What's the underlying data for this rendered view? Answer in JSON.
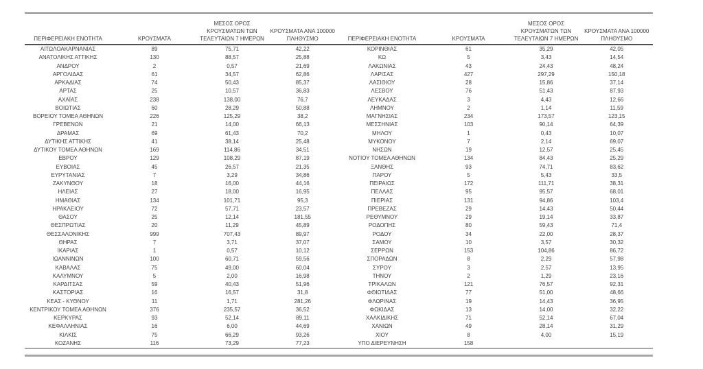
{
  "table": {
    "columns": {
      "region": "ΠΕΡΙΦΕΡΕΙΑΚΗ ΕΝΟΤΗΤΑ",
      "cases": "ΚΡΟΥΣΜΑΤΑ",
      "avg7": "ΜΕΣΟΣ ΟΡΟΣ\nΚΡΟΥΣΜΑΤΩΝ ΤΩΝ\nΤΕΛΕΥΤΑΙΩΝ 7 ΗΜΕΡΩΝ",
      "per100k": "ΚΡΟΥΣΜΑΤΑ ΑΝΑ 100000\nΠΛΗΘΥΣΜΟ"
    },
    "left_rows": [
      [
        "ΑΙΤΩΛΟΑΚΑΡΝΑΝΙΑΣ",
        "89",
        "75,71",
        "42,22"
      ],
      [
        "ΑΝΑΤΟΛΙΚΗΣ ΑΤΤΙΚΗΣ",
        "130",
        "88,57",
        "25,88"
      ],
      [
        "ΑΝΔΡΟΥ",
        "2",
        "0,57",
        "21,69"
      ],
      [
        "ΑΡΓΟΛΙΔΑΣ",
        "61",
        "34,57",
        "62,86"
      ],
      [
        "ΑΡΚΑΔΙΑΣ",
        "74",
        "50,43",
        "85,37"
      ],
      [
        "ΑΡΤΑΣ",
        "25",
        "10,57",
        "36,83"
      ],
      [
        "ΑΧΑΪΑΣ",
        "238",
        "138,00",
        "76,7"
      ],
      [
        "ΒΟΙΩΤΙΑΣ",
        "60",
        "28,29",
        "50,88"
      ],
      [
        "ΒΟΡΕΙΟΥ ΤΟΜΕΑ ΑΘΗΝΩΝ",
        "226",
        "125,29",
        "38,2"
      ],
      [
        "ΓΡΕΒΕΝΩΝ",
        "21",
        "14,00",
        "66,13"
      ],
      [
        "ΔΡΑΜΑΣ",
        "69",
        "61,43",
        "70,2"
      ],
      [
        "ΔΥΤΙΚΗΣ ΑΤΤΙΚΗΣ",
        "41",
        "38,14",
        "25,48"
      ],
      [
        "ΔΥΤΙΚΟΥ ΤΟΜΕΑ ΑΘΗΝΩΝ",
        "169",
        "114,86",
        "34,51"
      ],
      [
        "ΕΒΡΟΥ",
        "129",
        "108,29",
        "87,19"
      ],
      [
        "ΕΥΒΟΙΑΣ",
        "45",
        "26,57",
        "21,35"
      ],
      [
        "ΕΥΡΥΤΑΝΙΑΣ",
        "7",
        "3,29",
        "34,86"
      ],
      [
        "ΖΑΚΥΝΘΟΥ",
        "18",
        "16,00",
        "44,16"
      ],
      [
        "ΗΛΕΙΑΣ",
        "27",
        "18,00",
        "16,95"
      ],
      [
        "ΗΜΑΘΙΑΣ",
        "134",
        "101,71",
        "95,3"
      ],
      [
        "ΗΡΑΚΛΕΙΟΥ",
        "72",
        "57,71",
        "23,57"
      ],
      [
        "ΘΑΣΟΥ",
        "25",
        "12,14",
        "181,55"
      ],
      [
        "ΘΕΣΠΡΩΤΙΑΣ",
        "20",
        "11,29",
        "45,89"
      ],
      [
        "ΘΕΣΣΑΛΟΝΙΚΗΣ",
        "999",
        "707,43",
        "89,97"
      ],
      [
        "ΘΗΡΑΣ",
        "7",
        "3,71",
        "37,07"
      ],
      [
        "ΙΚΑΡΙΑΣ",
        "1",
        "0,57",
        "10,12"
      ],
      [
        "ΙΩΑΝΝΙΝΩΝ",
        "100",
        "60,71",
        "59,56"
      ],
      [
        "ΚΑΒΑΛΑΣ",
        "75",
        "49,00",
        "60,04"
      ],
      [
        "ΚΑΛΥΜΝΟΥ",
        "5",
        "2,00",
        "16,98"
      ],
      [
        "ΚΑΡΔΙΤΣΑΣ",
        "59",
        "40,43",
        "51,96"
      ],
      [
        "ΚΑΣΤΟΡΙΑΣ",
        "16",
        "16,57",
        "31,8"
      ],
      [
        "ΚΕΑΣ - ΚΥΘΝΟΥ",
        "11",
        "1,71",
        "281,26"
      ],
      [
        "ΚΕΝΤΡΙΚΟΥ ΤΟΜΕΑ ΑΘΗΝΩΝ",
        "376",
        "235,57",
        "36,52"
      ],
      [
        "ΚΕΡΚΥΡΑΣ",
        "93",
        "52,14",
        "89,11"
      ],
      [
        "ΚΕΦΑΛΛΗΝΙΑΣ",
        "16",
        "6,00",
        "44,69"
      ],
      [
        "ΚΙΛΚΙΣ",
        "75",
        "66,29",
        "93,26"
      ],
      [
        "ΚΟΖΑΝΗΣ",
        "116",
        "73,29",
        "77,23"
      ]
    ],
    "right_rows": [
      [
        "ΚΟΡΙΝΘΙΑΣ",
        "61",
        "35,29",
        "42,05"
      ],
      [
        "ΚΩ",
        "5",
        "3,43",
        "14,54"
      ],
      [
        "ΛΑΚΩΝΙΑΣ",
        "43",
        "24,43",
        "48,24"
      ],
      [
        "ΛΑΡΙΣΑΣ",
        "427",
        "297,29",
        "150,18"
      ],
      [
        "ΛΑΣΙΘΙΟΥ",
        "28",
        "15,86",
        "37,14"
      ],
      [
        "ΛΕΣΒΟΥ",
        "76",
        "51,43",
        "87,93"
      ],
      [
        "ΛΕΥΚΑΔΑΣ",
        "3",
        "4,43",
        "12,66"
      ],
      [
        "ΛΗΜΝΟΥ",
        "2",
        "1,14",
        "11,59"
      ],
      [
        "ΜΑΓΝΗΣΙΑΣ",
        "234",
        "173,57",
        "123,15"
      ],
      [
        "ΜΕΣΣΗΝΙΑΣ",
        "103",
        "90,14",
        "64,39"
      ],
      [
        "ΜΗΛΟΥ",
        "1",
        "0,43",
        "10,07"
      ],
      [
        "ΜΥΚΟΝΟΥ",
        "7",
        "2,14",
        "69,07"
      ],
      [
        "ΝΗΣΩΝ",
        "19",
        "12,57",
        "25,45"
      ],
      [
        "ΝΟΤΙΟΥ ΤΟΜΕΑ ΑΘΗΝΩΝ",
        "134",
        "84,43",
        "25,29"
      ],
      [
        "ΞΑΝΘΗΣ",
        "93",
        "74,71",
        "83,62"
      ],
      [
        "ΠΑΡΟΥ",
        "5",
        "5,43",
        "33,5"
      ],
      [
        "ΠΕΙΡΑΙΩΣ",
        "172",
        "111,71",
        "38,31"
      ],
      [
        "ΠΕΛΛΑΣ",
        "95",
        "95,57",
        "68,01"
      ],
      [
        "ΠΙΕΡΙΑΣ",
        "131",
        "94,86",
        "103,4"
      ],
      [
        "ΠΡΕΒΕΖΑΣ",
        "29",
        "14,43",
        "50,44"
      ],
      [
        "ΡΕΘΥΜΝΟΥ",
        "29",
        "19,14",
        "33,87"
      ],
      [
        "ΡΟΔΟΠΗΣ",
        "80",
        "59,43",
        "71,4"
      ],
      [
        "ΡΟΔΟΥ",
        "34",
        "22,00",
        "28,37"
      ],
      [
        "ΣΑΜΟΥ",
        "10",
        "3,57",
        "30,32"
      ],
      [
        "ΣΕΡΡΩΝ",
        "153",
        "104,86",
        "86,72"
      ],
      [
        "ΣΠΟΡΑΔΩΝ",
        "8",
        "2,29",
        "57,98"
      ],
      [
        "ΣΥΡΟΥ",
        "3",
        "2,57",
        "13,95"
      ],
      [
        "ΤΗΝΟΥ",
        "2",
        "1,29",
        "23,16"
      ],
      [
        "ΤΡΙΚΑΛΩΝ",
        "121",
        "76,57",
        "92,31"
      ],
      [
        "ΦΘΙΩΤΙΔΑΣ",
        "77",
        "51,00",
        "48,66"
      ],
      [
        "ΦΛΩΡΙΝΑΣ",
        "19",
        "14,43",
        "36,95"
      ],
      [
        "ΦΩΚΙΔΑΣ",
        "13",
        "14,00",
        "32,22"
      ],
      [
        "ΧΑΛΚΙΔΙΚΗΣ",
        "71",
        "52,14",
        "67,04"
      ],
      [
        "ΧΑΝΙΩΝ",
        "49",
        "28,14",
        "31,29"
      ],
      [
        "ΧΙΟΥ",
        "8",
        "4,00",
        "15,19"
      ],
      [
        "ΥΠΟ ΔΙΕΡΕΥΝΗΣΗ",
        "158",
        "",
        ""
      ]
    ]
  },
  "colors": {
    "text": "#404040",
    "rule_top": "#8f8f8f",
    "rule_header": "#4f4f4f",
    "rule_bottom": "#a6a6a6",
    "background": "#ffffff"
  }
}
